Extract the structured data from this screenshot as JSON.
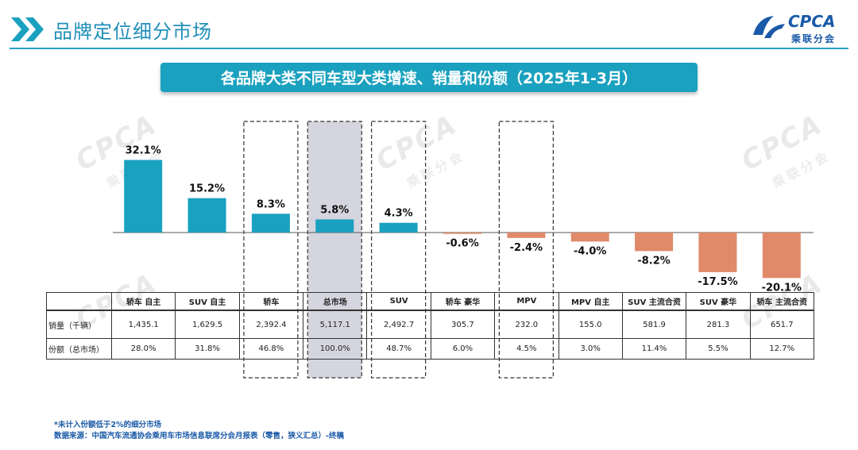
{
  "header": {
    "title": "品牌定位细分市场",
    "logo_text": "CPCA",
    "logo_sub": "乘联分会"
  },
  "banner": {
    "title": "各品牌大类不同车型大类增速、销量和份额（2025年1-3月）"
  },
  "watermark": {
    "text": "CPCA",
    "sub": "乘联分会"
  },
  "chart_data": {
    "type": "bar",
    "title": "各品牌大类不同车型大类增速、销量和份额（2025年1-3月）",
    "categories": [
      "轿车 自主",
      "SUV 自主",
      "轿车",
      "总市场",
      "SUV",
      "轿车 豪华",
      "MPV",
      "MPV 自主",
      "SUV 主流合资",
      "SUV 豪华",
      "轿车 主流合资"
    ],
    "series": [
      {
        "values": [
          32.1,
          15.2,
          8.3,
          5.8,
          4.3,
          -0.6,
          -2.4,
          -4.0,
          -8.2,
          -17.5,
          -20.1
        ],
        "labels": [
          "32.1%",
          "15.2%",
          "8.3%",
          "5.8%",
          "4.3%",
          "-0.6%",
          "-2.4%",
          "-4.0%",
          "-8.2%",
          "-17.5%",
          "-20.1%"
        ]
      }
    ],
    "unit": "%",
    "ylim": [
      -21,
      33
    ],
    "grid": false,
    "colors": {
      "positive": "#1aa1bf",
      "negative": "#e08a6a",
      "highlight_fill": "#d5d5df"
    },
    "highlighted": [
      "轿车",
      "总市场",
      "SUV",
      "MPV"
    ],
    "table": {
      "rows": [
        {
          "label": "销量（千辆）",
          "values": [
            "1,435.1",
            "1,629.5",
            "2,392.4",
            "5,117.1",
            "2,492.7",
            "305.7",
            "232.0",
            "155.0",
            "581.9",
            "281.3",
            "651.7"
          ]
        },
        {
          "label": "份额（总市场）",
          "values": [
            "28.0%",
            "31.8%",
            "46.8%",
            "100.0%",
            "48.7%",
            "6.0%",
            "4.5%",
            "3.0%",
            "11.4%",
            "5.5%",
            "12.7%"
          ]
        }
      ]
    }
  },
  "footnotes": {
    "line1": "*未计入份额低于2%的细分市场",
    "line2": "数据来源：中国汽车流通协会乘用车市场信息联席分会月报表（零售，狭义汇总）-终稿"
  }
}
